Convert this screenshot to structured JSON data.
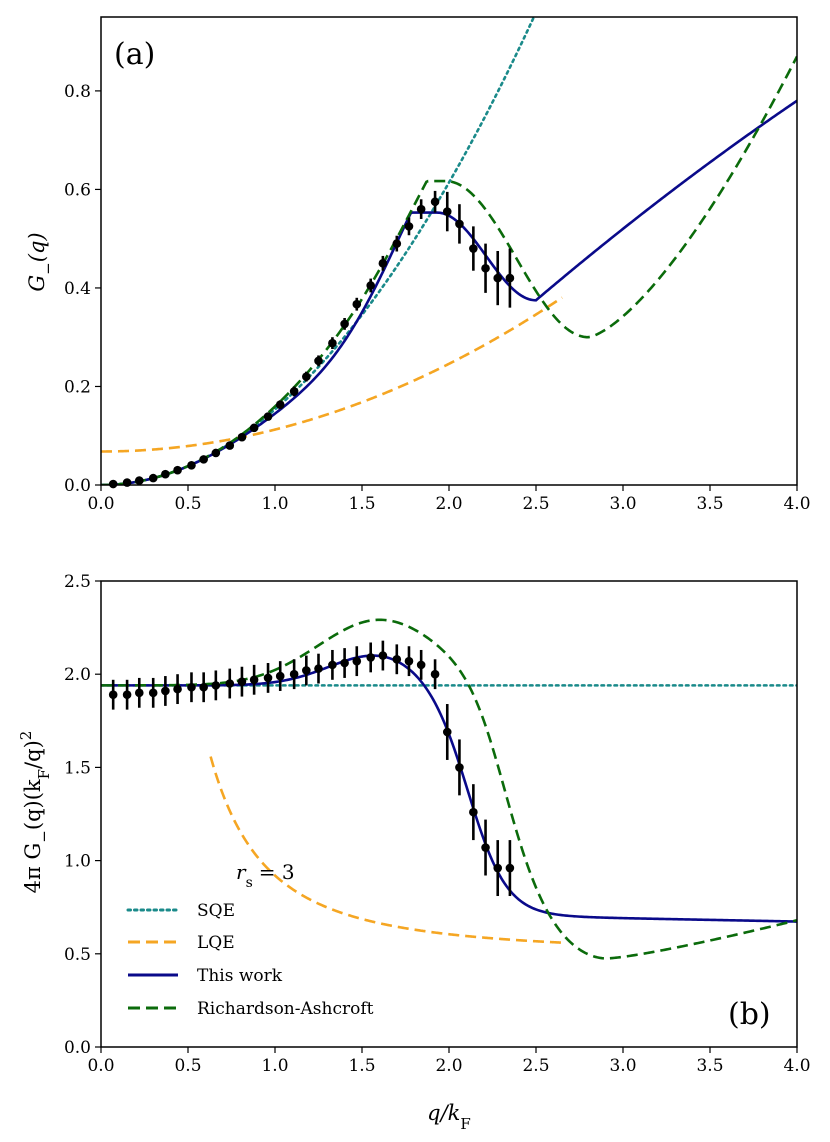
{
  "chart_data": [
    {
      "panel": "(a)",
      "type": "line",
      "ylabel": "G_(q)",
      "xlabel": "",
      "xlim": [
        0.0,
        4.0
      ],
      "ylim": [
        0.0,
        0.95
      ],
      "xticks": [
        "0.0",
        "0.5",
        "1.0",
        "1.5",
        "2.0",
        "2.5",
        "3.0",
        "3.5",
        "4.0"
      ],
      "yticks": [
        "0.0",
        "0.2",
        "0.4",
        "0.6",
        "0.8"
      ],
      "series": [
        {
          "name": "SQE",
          "style": "dotted",
          "color": "#1a8a8a",
          "model": "sqe_a"
        },
        {
          "name": "LQE",
          "style": "dashed",
          "color": "#f5a623",
          "model": "lqe_a",
          "x_range": [
            0.0,
            2.65
          ]
        },
        {
          "name": "This work",
          "style": "solid",
          "color": "#0a0a8a",
          "model": "this_a"
        },
        {
          "name": "Richardson-Ashcroft",
          "style": "dashed",
          "color": "#0b6b0b",
          "model": "ra_a"
        }
      ],
      "points": {
        "x": [
          0.07,
          0.15,
          0.22,
          0.3,
          0.37,
          0.44,
          0.52,
          0.59,
          0.66,
          0.74,
          0.81,
          0.88,
          0.96,
          1.03,
          1.11,
          1.18,
          1.25,
          1.33,
          1.4,
          1.47,
          1.55,
          1.62,
          1.7,
          1.77,
          1.84,
          1.92,
          1.99,
          2.06,
          2.14,
          2.21,
          2.28,
          2.35
        ],
        "y": [
          0.002,
          0.005,
          0.009,
          0.014,
          0.022,
          0.03,
          0.04,
          0.052,
          0.065,
          0.08,
          0.097,
          0.116,
          0.139,
          0.163,
          0.19,
          0.22,
          0.252,
          0.288,
          0.327,
          0.367,
          0.405,
          0.45,
          0.49,
          0.525,
          0.56,
          0.575,
          0.555,
          0.53,
          0.48,
          0.44,
          0.42,
          0.42
        ],
        "err": [
          0.003,
          0.003,
          0.004,
          0.004,
          0.005,
          0.005,
          0.006,
          0.006,
          0.006,
          0.007,
          0.007,
          0.008,
          0.008,
          0.009,
          0.01,
          0.01,
          0.011,
          0.012,
          0.012,
          0.013,
          0.014,
          0.015,
          0.016,
          0.018,
          0.02,
          0.022,
          0.04,
          0.04,
          0.045,
          0.05,
          0.055,
          0.06
        ]
      }
    },
    {
      "panel": "(b)",
      "type": "line",
      "ylabel": "4π G_(q)(k_F/q)²",
      "xlabel": "q/k_F",
      "xlim": [
        0.0,
        4.0
      ],
      "ylim": [
        0.0,
        2.5
      ],
      "xticks": [
        "0.0",
        "0.5",
        "1.0",
        "1.5",
        "2.0",
        "2.5",
        "3.0",
        "3.5",
        "4.0"
      ],
      "yticks": [
        "0.0",
        "0.5",
        "1.0",
        "1.5",
        "2.0",
        "2.5"
      ],
      "annotation": "r_s = 3",
      "legend_position": "lower-left",
      "series": [
        {
          "name": "SQE",
          "style": "dotted",
          "color": "#1a8a8a",
          "model": "sqe_b"
        },
        {
          "name": "LQE",
          "style": "dashed",
          "color": "#f5a623",
          "model": "lqe_b",
          "x_range": [
            0.63,
            2.65
          ]
        },
        {
          "name": "This work",
          "style": "solid",
          "color": "#0a0a8a",
          "model": "this_b"
        },
        {
          "name": "Richardson-Ashcroft",
          "style": "dashed",
          "color": "#0b6b0b",
          "model": "ra_b"
        }
      ],
      "points": {
        "x": [
          0.07,
          0.15,
          0.22,
          0.3,
          0.37,
          0.44,
          0.52,
          0.59,
          0.66,
          0.74,
          0.81,
          0.88,
          0.96,
          1.03,
          1.11,
          1.18,
          1.25,
          1.33,
          1.4,
          1.47,
          1.55,
          1.62,
          1.7,
          1.77,
          1.84,
          1.92,
          1.99,
          2.06,
          2.14,
          2.21,
          2.28,
          2.35
        ],
        "y": [
          1.89,
          1.89,
          1.9,
          1.9,
          1.91,
          1.92,
          1.93,
          1.93,
          1.94,
          1.95,
          1.96,
          1.97,
          1.98,
          1.99,
          2.0,
          2.02,
          2.03,
          2.05,
          2.06,
          2.07,
          2.09,
          2.1,
          2.08,
          2.07,
          2.05,
          2.0,
          1.69,
          1.5,
          1.26,
          1.07,
          0.96,
          0.96
        ],
        "err": [
          0.08,
          0.08,
          0.08,
          0.08,
          0.08,
          0.08,
          0.08,
          0.08,
          0.08,
          0.08,
          0.08,
          0.08,
          0.08,
          0.08,
          0.08,
          0.08,
          0.08,
          0.08,
          0.08,
          0.08,
          0.08,
          0.08,
          0.08,
          0.08,
          0.08,
          0.08,
          0.15,
          0.15,
          0.15,
          0.15,
          0.15,
          0.15
        ]
      }
    }
  ],
  "legend": {
    "rs_label": "r",
    "rs_sub": "s",
    "rs_value": "= 3",
    "entries": [
      "SQE",
      "LQE",
      "This work",
      "Richardson-Ashcroft"
    ]
  },
  "panels": {
    "a": {
      "tag": "(a)"
    },
    "b": {
      "tag": "(b)"
    }
  },
  "labels": {
    "ya_main": "G",
    "ya_sub": "−",
    "ya_arg": "(q)",
    "yb_pre": "4π G",
    "yb_sub": "−",
    "yb_mid": "(q)(k",
    "yb_sub2": "F",
    "yb_post": "/q)",
    "yb_sup": "2",
    "x_main": "q/k",
    "x_sub": "F"
  },
  "colors": {
    "sqe": "#1a8a8a",
    "lqe": "#f5a623",
    "this_work": "#0a0a8a",
    "richardson_ashcroft": "#0b6b0b",
    "points": "#000000"
  }
}
